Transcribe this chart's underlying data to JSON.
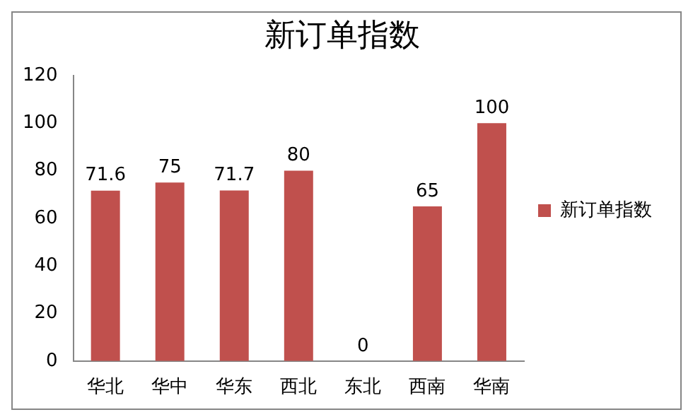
{
  "chart_data": {
    "type": "bar",
    "title": "新订单指数",
    "categories": [
      "华北",
      "华中",
      "华东",
      "西北",
      "东北",
      "西南",
      "华南"
    ],
    "series": [
      {
        "name": "新订单指数",
        "color": "#c0504d",
        "values": [
          71.6,
          75,
          71.7,
          80,
          0,
          65,
          100
        ]
      }
    ],
    "ylim": [
      0,
      120
    ],
    "yticks": [
      0,
      20,
      40,
      60,
      80,
      100,
      120
    ],
    "grid": false,
    "legend": "right",
    "data_labels": true
  }
}
